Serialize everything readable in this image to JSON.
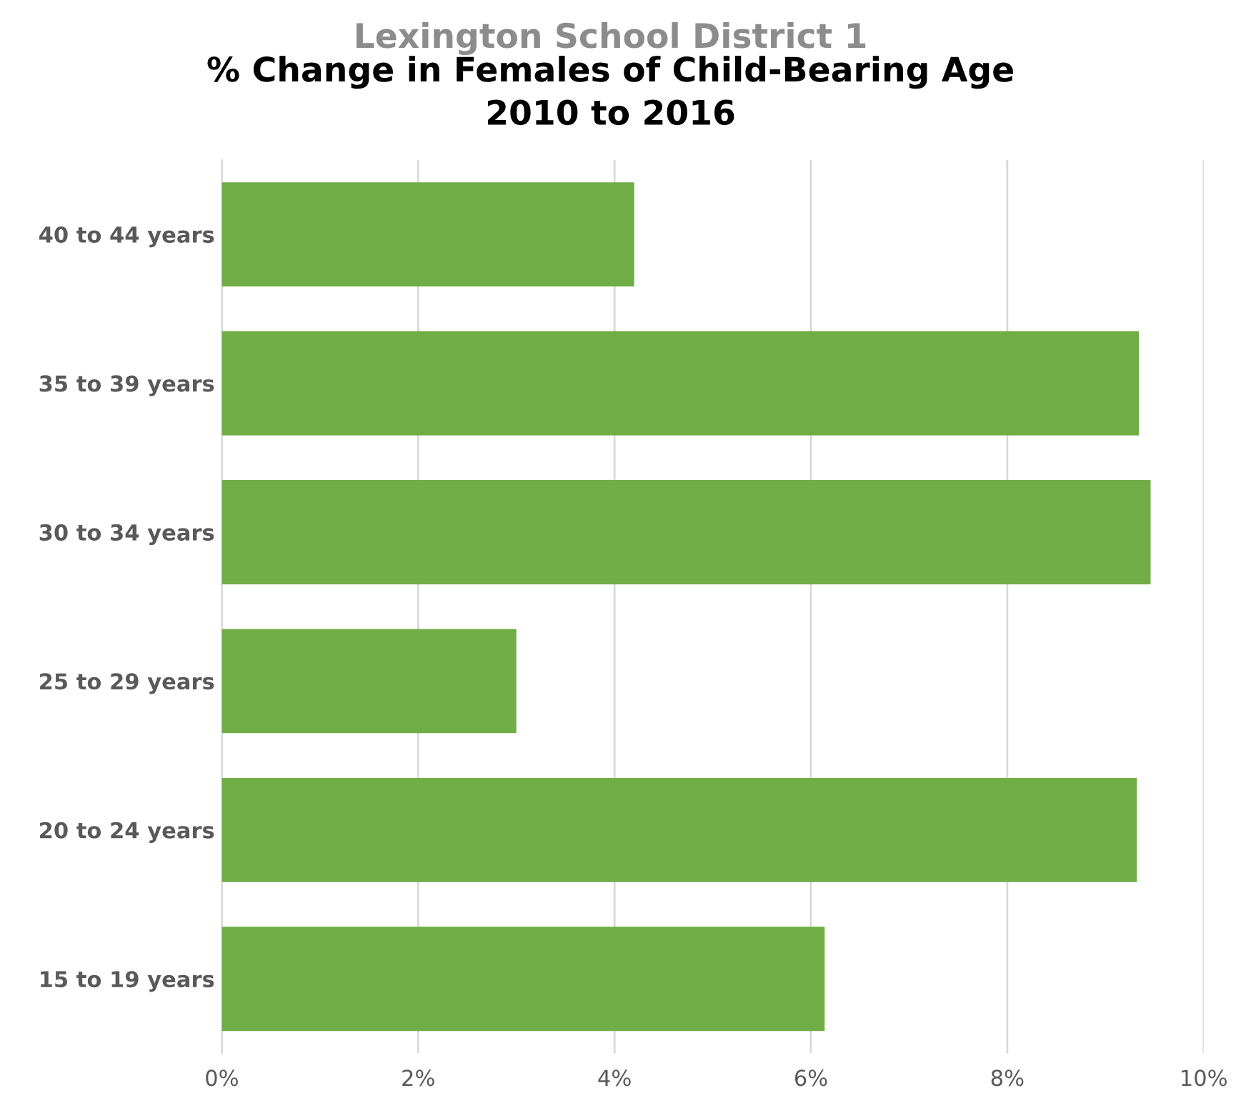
{
  "chart_data": {
    "type": "bar",
    "orientation": "horizontal",
    "title": "Lexington School District 1",
    "subtitle": "% Change in Females of Child-Bearing Age\n2010 to 2016",
    "categories": [
      "40 to 44 years",
      "35 to 39 years",
      "30 to 34 years",
      "25 to 29 years",
      "20 to 24 years",
      "15 to 19 years"
    ],
    "values": [
      4.2,
      9.34,
      9.46,
      3.0,
      9.32,
      6.14
    ],
    "color": "#70ad47",
    "xlim": [
      0,
      10
    ],
    "xticks": [
      {
        "value": 0,
        "label": "0%"
      },
      {
        "value": 2,
        "label": "2%"
      },
      {
        "value": 4,
        "label": "4%"
      },
      {
        "value": 6,
        "label": "6%"
      },
      {
        "value": 8,
        "label": "8%"
      },
      {
        "value": 10,
        "label": "10%"
      }
    ],
    "grid": "x",
    "legend": false
  }
}
